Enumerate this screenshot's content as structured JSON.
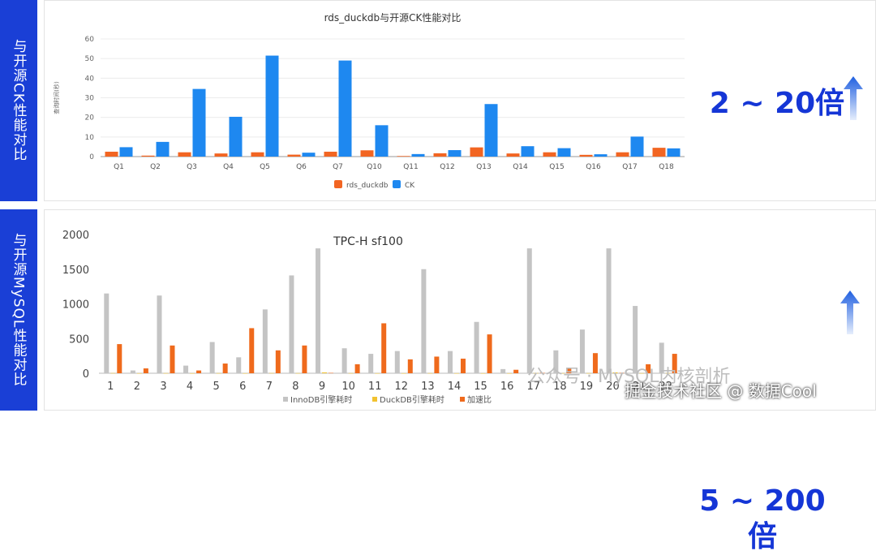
{
  "side_tabs": {
    "top": "与开源CK性能对比",
    "bottom": "与开源MySQL性能对比"
  },
  "callouts": {
    "top": "2 ~ 20倍",
    "bottom_line1": "5 ~ 200",
    "bottom_line2": "倍"
  },
  "watermark": {
    "line1": "公众号 · MySQL内核剖析",
    "line2": "掘金技术社区 @ 数据Cool"
  },
  "colors": {
    "side_tab": "#1a3fd6",
    "callout": "#1536d6",
    "rds_duckdb": "#f26522",
    "ck": "#1e88f0",
    "innodb": "#c4c4c4",
    "duckdb_engine": "#f2c230",
    "speedup": "#ef6a1c"
  },
  "chart_data": [
    {
      "type": "bar",
      "title": "rds_duckdb与开源CK性能对比",
      "ylabel": "查询时间(秒)",
      "xlabel": "",
      "ylim": [
        0,
        60
      ],
      "yticks": [
        0,
        10,
        20,
        30,
        40,
        50,
        60
      ],
      "grid": true,
      "legend_position": "bottom",
      "categories": [
        "Q1",
        "Q2",
        "Q3",
        "Q4",
        "Q5",
        "Q6",
        "Q7",
        "Q10",
        "Q11",
        "Q12",
        "Q13",
        "Q14",
        "Q15",
        "Q16",
        "Q17",
        "Q18"
      ],
      "series": [
        {
          "name": "rds_duckdb",
          "values": [
            2.5,
            0.5,
            2.2,
            1.6,
            2.2,
            1.0,
            2.5,
            3.2,
            0.3,
            1.7,
            4.7,
            1.6,
            2.2,
            0.9,
            2.2,
            4.5
          ]
        },
        {
          "name": "CK",
          "values": [
            4.8,
            7.5,
            34.5,
            20.3,
            51.5,
            2.0,
            49.0,
            16.0,
            1.3,
            3.3,
            26.8,
            5.3,
            4.3,
            1.2,
            10.2,
            4.2
          ]
        }
      ]
    },
    {
      "type": "bar",
      "title": "TPC-H sf100",
      "xlabel": "",
      "ylabel": "",
      "ylim": [
        0,
        2000
      ],
      "yticks": [
        0,
        500,
        1000,
        1500,
        2000
      ],
      "grid": false,
      "legend_position": "bottom",
      "categories": [
        "1",
        "2",
        "3",
        "4",
        "5",
        "6",
        "7",
        "8",
        "9",
        "10",
        "11",
        "12",
        "13",
        "14",
        "15",
        "16",
        "17",
        "18",
        "19",
        "20",
        "21",
        "22"
      ],
      "series": [
        {
          "name": "InnoDB引擎耗时",
          "values": [
            1150,
            40,
            1120,
            110,
            450,
            230,
            920,
            1410,
            1800,
            360,
            280,
            320,
            1500,
            320,
            740,
            60,
            1800,
            330,
            630,
            1800,
            970,
            440
          ]
        },
        {
          "name": "DuckDB引擎耗时",
          "values": [
            3,
            1,
            2,
            1,
            2,
            1,
            3,
            2,
            12,
            2,
            1,
            1,
            2,
            1,
            1,
            1,
            3,
            2,
            2,
            12,
            2,
            3
          ]
        },
        {
          "name": "加速比",
          "values": [
            420,
            70,
            400,
            40,
            140,
            650,
            330,
            400,
            5,
            130,
            720,
            200,
            240,
            210,
            560,
            50,
            5,
            80,
            290,
            5,
            130,
            280
          ]
        }
      ]
    }
  ]
}
